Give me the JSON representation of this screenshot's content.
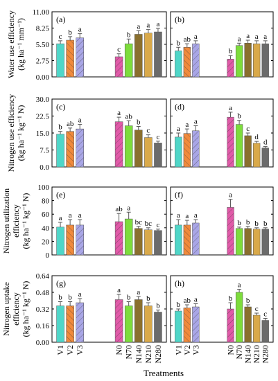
{
  "figure": {
    "x_axis_title": "Treatments",
    "colors": {
      "V1": "#4fd6c8",
      "V2": "#f08a3c",
      "V3": "#a9a6e6",
      "N0": "#e05aa8",
      "N70": "#7ddc3c",
      "N140": "#8a6f2e",
      "N210": "#d9a94a",
      "N280": "#6b6b6b"
    }
  },
  "chart_data": [
    {
      "type": "bar",
      "panel_label": "(a)",
      "ylabel": [
        "Water use efficiency",
        "(kg ha⁻¹ mm⁻¹)"
      ],
      "ylim": [
        0,
        11
      ],
      "yticks": [
        "0.00",
        "2.75",
        "5.50",
        "8.25",
        "11.00"
      ],
      "categories": [
        "V1",
        "V2",
        "V3",
        "N0",
        "N70",
        "N140",
        "N210",
        "N280"
      ],
      "values": [
        5.6,
        6.2,
        6.6,
        3.4,
        5.6,
        7.2,
        7.4,
        7.6
      ],
      "errors": [
        0.5,
        0.6,
        0.7,
        0.5,
        0.8,
        0.6,
        0.6,
        0.6
      ],
      "letters": [
        "c",
        "b",
        "a",
        "c",
        "b",
        "a",
        "a",
        "a"
      ],
      "hatch": [
        false,
        true,
        true,
        true,
        false,
        false,
        false,
        false
      ]
    },
    {
      "type": "bar",
      "panel_label": "(b)",
      "ylim": [
        0,
        11
      ],
      "categories": [
        "V1",
        "V2",
        "V3",
        "N0",
        "N70",
        "N140",
        "N210",
        "N280"
      ],
      "values": [
        4.4,
        5.0,
        5.6,
        3.0,
        5.3,
        5.7,
        5.6,
        5.6
      ],
      "errors": [
        0.6,
        0.6,
        0.5,
        0.6,
        0.4,
        0.5,
        0.5,
        0.5
      ],
      "letters": [
        "b",
        "ab",
        "a",
        "b",
        "a",
        "a",
        "a",
        "a"
      ],
      "hatch": [
        false,
        true,
        true,
        true,
        false,
        false,
        false,
        false
      ]
    },
    {
      "type": "bar",
      "panel_label": "(c)",
      "ylabel": [
        "Nitrogen use efficiency",
        "(kg ha⁻¹ kg⁻¹ N)"
      ],
      "ylim": [
        0,
        30
      ],
      "yticks": [
        "0.0",
        "7.5",
        "15.0",
        "22.5",
        "30.0"
      ],
      "categories": [
        "V1",
        "V2",
        "V3",
        "N0",
        "N70",
        "N140",
        "N210",
        "N280"
      ],
      "values": [
        14.5,
        15.7,
        16.8,
        20.0,
        18.2,
        16.3,
        13.0,
        10.6
      ],
      "errors": [
        1.2,
        1.5,
        2.0,
        2.0,
        2.2,
        1.6,
        1.2,
        0.8
      ],
      "letters": [
        "b",
        "ab",
        "a",
        "a",
        "ab",
        "b",
        "c",
        "c"
      ],
      "hatch": [
        false,
        true,
        true,
        true,
        false,
        false,
        false,
        false
      ]
    },
    {
      "type": "bar",
      "panel_label": "(d)",
      "ylim": [
        0,
        30
      ],
      "categories": [
        "V1",
        "V2",
        "V3",
        "N0",
        "N70",
        "N140",
        "N210",
        "N280"
      ],
      "values": [
        13.2,
        14.8,
        16.0,
        22.0,
        18.8,
        13.8,
        10.5,
        8.4
      ],
      "errors": [
        1.8,
        2.0,
        2.2,
        2.2,
        1.8,
        1.2,
        0.8,
        0.6
      ],
      "letters": [
        "a",
        "a",
        "a",
        "a",
        "b",
        "c",
        "d",
        "d"
      ],
      "hatch": [
        false,
        true,
        true,
        true,
        false,
        false,
        false,
        false
      ]
    },
    {
      "type": "bar",
      "panel_label": "(e)",
      "ylabel": [
        "Nitrogen utilization",
        "efficiency",
        "(kg ha⁻¹ kg⁻¹ N)"
      ],
      "ylim": [
        0,
        100
      ],
      "yticks": [
        "0",
        "20",
        "40",
        "60",
        "80",
        "100"
      ],
      "categories": [
        "V1",
        "V2",
        "V3",
        "N0",
        "N70",
        "N140",
        "N210",
        "N280"
      ],
      "values": [
        41,
        44,
        44,
        49,
        53,
        39,
        37,
        36
      ],
      "errors": [
        7,
        8,
        8,
        12,
        10,
        3,
        3,
        2
      ],
      "letters": [
        "a",
        "a",
        "a",
        "ab",
        "a",
        "bc",
        "bc",
        "c"
      ],
      "hatch": [
        false,
        true,
        true,
        true,
        false,
        false,
        false,
        false
      ]
    },
    {
      "type": "bar",
      "panel_label": "(f)",
      "ylim": [
        0,
        100
      ],
      "categories": [
        "V1",
        "V2",
        "V3",
        "N0",
        "N70",
        "N140",
        "N210",
        "N280"
      ],
      "values": [
        44,
        44,
        47,
        70,
        39,
        39,
        38,
        38
      ],
      "errors": [
        8,
        7,
        5,
        12,
        2,
        3,
        2,
        2
      ],
      "letters": [
        "a",
        "a",
        "a",
        "a",
        "b",
        "b",
        "b",
        "b"
      ],
      "hatch": [
        false,
        true,
        true,
        true,
        false,
        false,
        false,
        false
      ]
    },
    {
      "type": "bar",
      "panel_label": "(g)",
      "ylabel": [
        "Nitrogen uptake",
        "efficiency",
        "(kg ha⁻¹ kg⁻¹ N)"
      ],
      "ylim": [
        0,
        0.64
      ],
      "yticks": [
        "0.00",
        "0.16",
        "0.32",
        "0.48",
        "0.64"
      ],
      "categories": [
        "V1",
        "V2",
        "V3",
        "N0",
        "N70",
        "N140",
        "N210",
        "N280"
      ],
      "values": [
        0.35,
        0.35,
        0.38,
        0.41,
        0.35,
        0.41,
        0.35,
        0.29
      ],
      "errors": [
        0.04,
        0.04,
        0.04,
        0.05,
        0.04,
        0.03,
        0.03,
        0.02
      ],
      "letters": [
        "b",
        "b",
        "a",
        "a",
        "b",
        "a",
        "b",
        "b"
      ],
      "hatch": [
        false,
        true,
        true,
        true,
        false,
        false,
        false,
        false
      ]
    },
    {
      "type": "bar",
      "panel_label": "(h)",
      "ylim": [
        0,
        0.64
      ],
      "categories": [
        "V1",
        "V2",
        "V3",
        "N0",
        "N70",
        "N140",
        "N210",
        "N280"
      ],
      "values": [
        0.3,
        0.33,
        0.34,
        0.32,
        0.48,
        0.34,
        0.26,
        0.21
      ],
      "errors": [
        0.02,
        0.03,
        0.03,
        0.06,
        0.03,
        0.02,
        0.02,
        0.02
      ],
      "letters": [
        "b",
        "ab",
        "a",
        "b",
        "a",
        "b",
        "c",
        "c"
      ],
      "hatch": [
        false,
        true,
        true,
        true,
        false,
        false,
        false,
        false
      ]
    }
  ]
}
